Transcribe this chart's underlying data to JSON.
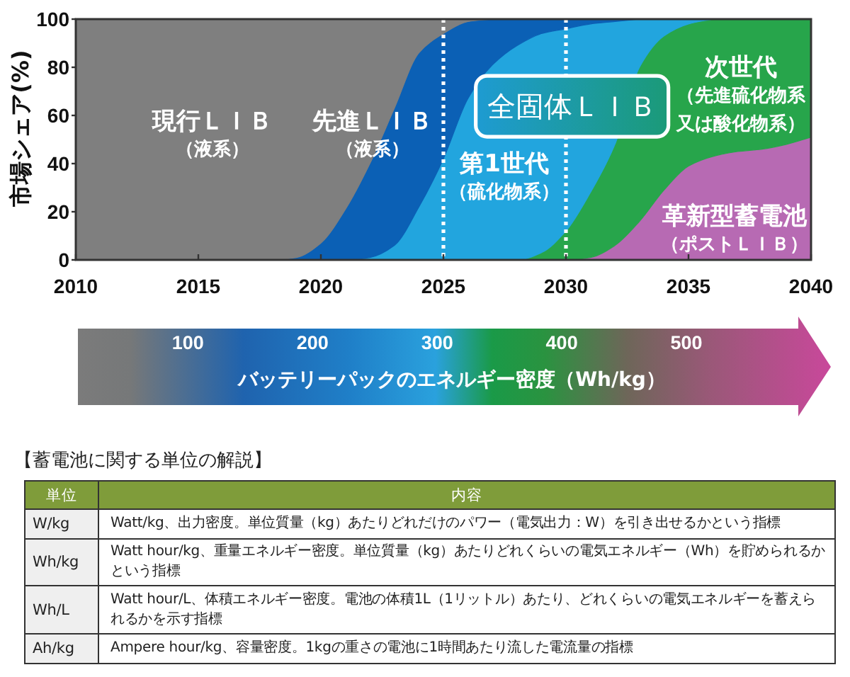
{
  "chart_data": [
    {
      "type": "area",
      "stacked": true,
      "ylabel": "市場シェア(%)",
      "x": [
        2010,
        2018,
        2019,
        2020,
        2021,
        2022,
        2023,
        2024,
        2025,
        2026,
        2027,
        2028,
        2029,
        2030,
        2031,
        2032,
        2033,
        2034,
        2035,
        2036,
        2037,
        2038,
        2039,
        2040
      ],
      "xlim": [
        2010,
        2040
      ],
      "ylim": [
        0,
        100
      ],
      "xticks": [
        2010,
        2015,
        2020,
        2025,
        2030,
        2035,
        2040
      ],
      "yticks": [
        0,
        20,
        40,
        60,
        80,
        100
      ],
      "x2lim": [
        10,
        600
      ],
      "x2ticks": [
        100,
        200,
        300,
        400,
        500
      ],
      "x2label": "バッテリーパックのエネルギー密度（Wh/kg）",
      "series": [
        {
          "name": "革新型蓄電池（ポストＬＩＢ）",
          "color": "#b76ab3",
          "values": [
            null,
            null,
            null,
            null,
            null,
            null,
            null,
            null,
            null,
            null,
            null,
            null,
            null,
            0,
            1,
            6,
            16,
            29,
            39,
            43,
            45,
            46,
            48,
            51
          ]
        },
        {
          "name": "次世代（先進硫化物系又は酸化物系）",
          "color": "#27a54b",
          "values": [
            null,
            null,
            null,
            null,
            null,
            null,
            null,
            null,
            null,
            null,
            null,
            0,
            3,
            12,
            27,
            42,
            64,
            64,
            59,
            57,
            55,
            54,
            52,
            49
          ]
        },
        {
          "name": "第1世代（硫化物系）",
          "color": "#22a5de",
          "values": [
            null,
            null,
            null,
            null,
            0,
            1,
            6,
            22,
            42,
            67,
            81,
            89,
            91,
            84,
            70,
            51,
            20,
            7,
            2,
            0,
            null,
            null,
            null,
            null
          ]
        },
        {
          "name": "先進ＬＩＢ（液系）",
          "color": "#0b60b5",
          "values": [
            null,
            0,
            1,
            7,
            21,
            39,
            57,
            64,
            52,
            32,
            19,
            11,
            6,
            4,
            2,
            1,
            0,
            null,
            null,
            null,
            null,
            null,
            null,
            null
          ]
        },
        {
          "name": "現行ＬＩＢ（液系）",
          "color": "#7f7f7f",
          "values": [
            100,
            100,
            99,
            93,
            79,
            60,
            37,
            14,
            6,
            1,
            0,
            null,
            null,
            null,
            null,
            null,
            null,
            null,
            null,
            null,
            null,
            null,
            null,
            null
          ]
        }
      ],
      "ref_lines": [
        {
          "axis": "x",
          "value": 2025,
          "color": "#ffffff",
          "line_style": "dotted"
        },
        {
          "axis": "x",
          "value": 2030,
          "color": "#ffffff",
          "line_style": "dotted"
        }
      ],
      "annotations": [
        "全固体ＬＩＢ"
      ]
    },
    {
      "type": "other",
      "title": "【蓄電池に関する単位の解説】",
      "categories": [
        "単位",
        "内容"
      ],
      "y_categories": [
        "W/kg",
        "Wh/kg",
        "Wh/L",
        "Ah/kg"
      ],
      "annotations": [
        "Watt/kg、出力密度。単位質量（kg）あたりどれだけのパワー（電気出力：W）を引き出せるかという指標",
        "Watt hour/kg、重量エネルギー密度。単位質量（kg）あたりどれくらいの電気エネルギー（Wh）を貯められるかという指標",
        "Watt hour/L、体積エネルギー密度。電池の体積1L（1リットル）あたり、どれくらいの電気エネルギーを蓄えられるかを示す指標",
        "Ampere hour/kg、容量密度。1kgの重さの電池に1時間あたり流した電流量の指標"
      ]
    }
  ]
}
